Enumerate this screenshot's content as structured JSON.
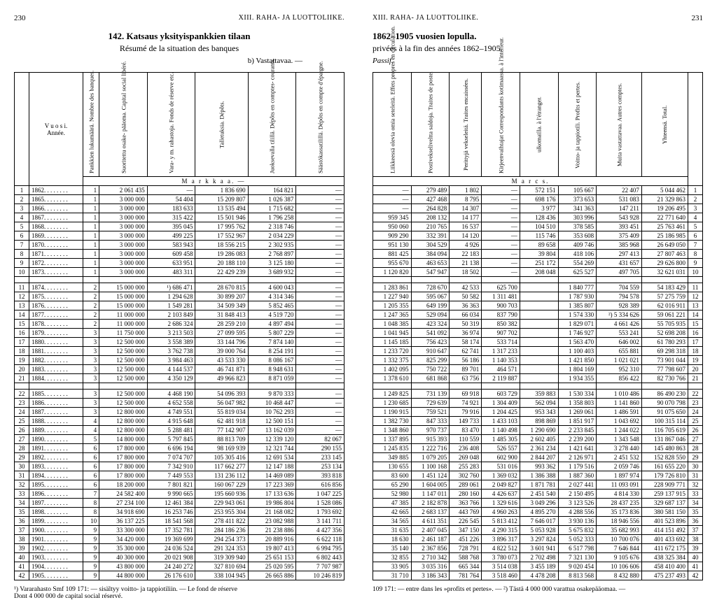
{
  "left": {
    "page_num": "230",
    "section": "XIII. RAHA- JA LUOTTOLIIKE.",
    "title_num": "142.",
    "title": "Katsaus yksityispankkien tilaan",
    "subtitle": "Résumé de la situation des banques",
    "note_b": "b) Vastattavaa. —",
    "year_header": "V u o s i.\nAnnée.",
    "columns": [
      "Pankkien lukumäärä.\nNombre des banques.",
      "Suoritettu osake-\npääoma.\nCapital social libéré.",
      "Vara- y m. rahastoja.\nFonds de réserve etc.",
      "Talletuksia.\nDépôts.",
      "Juoksevalla tilillä.\nDépôts en comptes-\ncourants.",
      "Säästökassatilillä.\nDépôts en compte\nd'épargne."
    ],
    "unit": "M a r k k a a. —",
    "rows": [
      [
        "1",
        "1862. . . . . . . .",
        "1",
        "2 061 435",
        "—",
        "1 836 690",
        "164 821",
        "—"
      ],
      [
        "2",
        "1865. . . . . . . .",
        "1",
        "3 000 000",
        "54 404",
        "15 209 807",
        "1 026 387",
        "—"
      ],
      [
        "3",
        "1866. . . . . . . .",
        "1",
        "3 000 000",
        "183 633",
        "13 535 494",
        "1 715 682",
        "—"
      ],
      [
        "4",
        "1867. . . . . . . .",
        "1",
        "3 000 000",
        "315 422",
        "15 501 946",
        "1 796 258",
        "—"
      ],
      [
        "5",
        "1868. . . . . . . .",
        "1",
        "3 000 000",
        "395 045",
        "17 995 762",
        "2 318 746",
        "—"
      ],
      [
        "6",
        "1869. . . . . . . .",
        "1",
        "3 000 000",
        "499 225",
        "17 552 967",
        "2 034 229",
        "—"
      ],
      [
        "7",
        "1870. . . . . . . .",
        "1",
        "3 000 000",
        "583 943",
        "18 556 215",
        "2 302 935",
        "—"
      ],
      [
        "8",
        "1871. . . . . . . .",
        "1",
        "3 000 000",
        "609 458",
        "19 286 083",
        "2 768 897",
        "—"
      ],
      [
        "9",
        "1872. . . . . . . .",
        "1",
        "3 000 000",
        "633 951",
        "20 188 110",
        "3 125 180",
        "—"
      ],
      [
        "10",
        "1873. . . . . . . .",
        "1",
        "3 000 000",
        "483 311",
        "22 429 239",
        "3 689 932",
        "—"
      ],
      [
        "11",
        "1874. . . . . . . .",
        "2",
        "15 000 000",
        "¹) 686 471",
        "28 670 815",
        "4 600 043",
        "—"
      ],
      [
        "12",
        "1875. . . . . . . .",
        "2",
        "15 000 000",
        "1 294 628",
        "30 899 207",
        "4 314 346",
        "—"
      ],
      [
        "13",
        "1876. . . . . . . .",
        "2",
        "15 000 000",
        "1 549 281",
        "34 509 349",
        "5 852 465",
        "—"
      ],
      [
        "14",
        "1877. . . . . . . .",
        "2",
        "11 000 000",
        "2 103 849",
        "31 848 413",
        "4 519 720",
        "—"
      ],
      [
        "15",
        "1878. . . . . . . .",
        "2",
        "11 000 000",
        "2 686 324",
        "28 259 210",
        "4 897 494",
        "—"
      ],
      [
        "16",
        "1879. . . . . . . .",
        "3",
        "11 750 000",
        "3 213 503",
        "27 099 595",
        "5 807 229",
        "—"
      ],
      [
        "17",
        "1880. . . . . . . .",
        "3",
        "12 500 000",
        "3 558 389",
        "33 144 796",
        "7 874 140",
        "—"
      ],
      [
        "18",
        "1881. . . . . . . .",
        "3",
        "12 500 000",
        "3 762 738",
        "39 000 764",
        "8 254 191",
        "—"
      ],
      [
        "19",
        "1882. . . . . . . .",
        "3",
        "12 500 000",
        "3 984 463",
        "43 533 330",
        "8 086 167",
        "—"
      ],
      [
        "20",
        "1883. . . . . . . .",
        "3",
        "12 500 000",
        "4 144 537",
        "46 741 871",
        "8 948 631",
        "—"
      ],
      [
        "21",
        "1884. . . . . . . .",
        "3",
        "12 500 000",
        "4 350 129",
        "49 966 823",
        "8 871 059",
        "—"
      ],
      [
        "22",
        "1885. . . . . . . .",
        "3",
        "12 500 000",
        "4 468 190",
        "54 096 393",
        "9 870 333",
        "—"
      ],
      [
        "23",
        "1886. . . . . . . .",
        "3",
        "12 500 000",
        "4 652 558",
        "56 047 982",
        "10 468 447",
        "—"
      ],
      [
        "24",
        "1887. . . . . . . .",
        "3",
        "12 800 000",
        "4 749 551",
        "55 819 034",
        "10 762 293",
        "—"
      ],
      [
        "25",
        "1888. . . . . . . .",
        "4",
        "12 800 000",
        "4 915 648",
        "62 481 918",
        "12 500 151",
        "—"
      ],
      [
        "26",
        "1889. . . . . . . .",
        "4",
        "12 800 000",
        "5 288 481",
        "77 142 907",
        "13 162 039",
        "—"
      ],
      [
        "27",
        "1890. . . . . . . .",
        "5",
        "14 800 000",
        "5 797 845",
        "88 813 709",
        "12 339 120",
        "82 067"
      ],
      [
        "28",
        "1891. . . . . . . .",
        "6",
        "17 800 000",
        "6 696 194",
        "98 169 939",
        "12 321 744",
        "290 155"
      ],
      [
        "29",
        "1892. . . . . . . .",
        "6",
        "17 800 000",
        "7 074 707",
        "105 305 416",
        "12 691 534",
        "233 145"
      ],
      [
        "30",
        "1893. . . . . . . .",
        "6",
        "17 800 000",
        "7 342 910",
        "117 662 277",
        "12 147 188",
        "253 134"
      ],
      [
        "31",
        "1894. . . . . . . .",
        "6",
        "17 800 000",
        "7 449 553",
        "131 236 112",
        "14 469 089",
        "393 818"
      ],
      [
        "32",
        "1895. . . . . . . .",
        "6",
        "18 200 000",
        "7 801 821",
        "160 067 229",
        "17 223 369",
        "616 856"
      ],
      [
        "33",
        "1896. . . . . . . .",
        "7",
        "24 582 400",
        "9 990 665",
        "195 660 936",
        "17 133 636",
        "1 047 225"
      ],
      [
        "34",
        "1897. . . . . . . .",
        "8",
        "27 234 100",
        "12 461 384",
        "229 943 061",
        "19 986 804",
        "1 528 086"
      ],
      [
        "35",
        "1898. . . . . . . .",
        "8",
        "34 918 690",
        "16 253 746",
        "253 955 304",
        "21 168 082",
        "1 793 692"
      ],
      [
        "36",
        "1899. . . . . . . .",
        "10",
        "36 137 225",
        "18 541 568",
        "278 411 822",
        "23 082 988",
        "3 141 711"
      ],
      [
        "37",
        "1900. . . . . . . .",
        "9",
        "33 300 000",
        "17 352 781",
        "284 186 236",
        "21 238 886",
        "4 427 356"
      ],
      [
        "38",
        "1901. . . . . . . .",
        "9",
        "34 420 000",
        "19 369 699",
        "294 254 373",
        "20 889 916",
        "6 622 118"
      ],
      [
        "39",
        "1902. . . . . . . .",
        "9",
        "35 300 000",
        "24 036 524",
        "291 324 353",
        "19 807 413",
        "6 994 795"
      ],
      [
        "40",
        "1903. . . . . . . .",
        "9",
        "40 300 000",
        "20 021 908",
        "319 309 940",
        "25 651 153",
        "6 802 443"
      ],
      [
        "41",
        "1904. . . . . . . .",
        "9",
        "43 800 000",
        "24 240 272",
        "327 810 694",
        "25 020 595",
        "7 707 987"
      ],
      [
        "42",
        "1905. . . . . . . .",
        "9",
        "44 800 000",
        "26 176 610",
        "338 104 945",
        "26 665 886",
        "10 246 819"
      ]
    ],
    "footnote": "¹) Vararahasto Smf 109 171: — sisältyy voitto- ja tappiotiliin. — Le fond de réserve\nDont 4 000 000 de capital social réservé."
  },
  "right": {
    "page_num": "231",
    "section": "XIII. RAHA- JA LUOTTOLIIKE.",
    "title": "1862–1905 vuosien lopulla.",
    "subtitle": "privées à la fin des années 1862–1905.",
    "note": "Passif.",
    "columns": [
      "Liikkeessä olevia\nomia seteleitä.\nEffets propres en\ncirculation.",
      "Postivekseliveltta\nsaldoja.\nTraites de poste.",
      "Perittyjä vekseleitä.\nTraites encaissées.",
      "Kirjeenvaihtajat\nCorrespondants\nkotimaassa.\nà l'intérieur.",
      "ulkomailla.\nà l'étranger.",
      "Voitto- ja tappiotili.\nProfits et pertes.",
      "Muita vastattavaa.\nAutres comptes.",
      "Yhteensä.\nTotal."
    ],
    "unit": "M a r c s.",
    "rows": [
      [
        "—",
        "279 489",
        "1 802",
        "—",
        "572 151",
        "105 667",
        "22 407",
        "5 044 462",
        "1"
      ],
      [
        "—",
        "427 468",
        "8 795",
        "—",
        "698 176",
        "373 653",
        "531 083",
        "21 329 863",
        "2"
      ],
      [
        "—",
        "264 828",
        "14 307",
        "—",
        "3 977",
        "341 363",
        "147 211",
        "19 206 495",
        "3"
      ],
      [
        "959 345",
        "208 132",
        "14 177",
        "—",
        "128 436",
        "303 996",
        "543 928",
        "22 771 640",
        "4"
      ],
      [
        "950 060",
        "210 765",
        "16 537",
        "—",
        "104 510",
        "378 585",
        "393 451",
        "25 763 461",
        "5"
      ],
      [
        "909 290",
        "332 391",
        "14 120",
        "—",
        "115 746",
        "353 608",
        "375 409",
        "25 186 985",
        "6"
      ],
      [
        "951 130",
        "304 529",
        "4 926",
        "—",
        "89 658",
        "409 746",
        "385 968",
        "26 649 050",
        "7"
      ],
      [
        "881 425",
        "384 094",
        "22 183",
        "—",
        "39 804",
        "418 106",
        "297 413",
        "27 807 463",
        "8"
      ],
      [
        "955 670",
        "463 653",
        "21 138",
        "—",
        "251 172",
        "554 269",
        "431 657",
        "29 626 800",
        "9"
      ],
      [
        "1 120 820",
        "547 947",
        "18 502",
        "—",
        "208 048",
        "625 527",
        "497 705",
        "32 621 031",
        "10"
      ],
      [
        "1 283 861",
        "728 670",
        "42 533",
        "625 700",
        "",
        "1 840 777",
        "704 559",
        "54 183 429",
        "11"
      ],
      [
        "1 227 940",
        "595 067",
        "50 582",
        "1 311 481",
        "",
        "1 787 930",
        "794 578",
        "57 275 759",
        "12"
      ],
      [
        "1 205 355",
        "649 199",
        "36 363",
        "900 703",
        "",
        "1 385 807",
        "928 389",
        "62 016 911",
        "13"
      ],
      [
        "1 247 365",
        "529 094",
        "66 034",
        "837 790",
        "",
        "1 574 330",
        "²) 5 334 626",
        "59 061 221",
        "14"
      ],
      [
        "1 048 385",
        "423 324",
        "50 319",
        "850 382",
        "",
        "1 829 071",
        "4 661 426",
        "55 705 935",
        "15"
      ],
      [
        "1 041 945",
        "541 092",
        "36 974",
        "907 702",
        "",
        "1 746 927",
        "553 241",
        "52 698 208",
        "16"
      ],
      [
        "1 145 185",
        "756 423",
        "58 174",
        "533 714",
        "",
        "1 563 470",
        "646 002",
        "61 780 293",
        "17"
      ],
      [
        "1 233 720",
        "910 647",
        "62 741",
        "1 317 233",
        "",
        "1 100 403",
        "655 881",
        "69 298 318",
        "18"
      ],
      [
        "1 332 375",
        "825 299",
        "56 186",
        "1 140 353",
        "",
        "1 421 850",
        "1 021 021",
        "73 901 044",
        "19"
      ],
      [
        "1 402 095",
        "750 722",
        "89 701",
        "464 571",
        "",
        "1 804 169",
        "952 310",
        "77 798 607",
        "20"
      ],
      [
        "1 378 610",
        "681 868",
        "63 756",
        "2 119 887",
        "",
        "1 934 355",
        "856 422",
        "82 730 766",
        "21"
      ],
      [
        "1 249 825",
        "731 139",
        "69 918",
        "603 729",
        "359 883",
        "1 530 334",
        "1 010 486",
        "86 490 230",
        "22"
      ],
      [
        "1 230 685",
        "729 639",
        "74 921",
        "1 304 409",
        "562 094",
        "1 358 803",
        "1 141 860",
        "90 070 798",
        "23"
      ],
      [
        "1 190 915",
        "759 521",
        "79 916",
        "1 204 425",
        "953 343",
        "1 269 061",
        "1 486 591",
        "91 075 650",
        "24"
      ],
      [
        "1 382 730",
        "847 333",
        "149 733",
        "1 433 103",
        "898 869",
        "1 851 917",
        "1 043 692",
        "100 315 114",
        "25"
      ],
      [
        "1 348 860",
        "970 737",
        "83 470",
        "1 140 498",
        "1 290 690",
        "2 233 845",
        "1 244 022",
        "116 705 619",
        "26"
      ],
      [
        "1 337 895",
        "915 393",
        "110 559",
        "1 485 305",
        "2 602 405",
        "2 239 200",
        "1 343 548",
        "131 867 046",
        "27"
      ],
      [
        "1 245 835",
        "1 222 716",
        "236 408",
        "526 557",
        "2 361 234",
        "1 421 641",
        "3 278 440",
        "145 480 863",
        "28"
      ],
      [
        "349 885",
        "1 079 205",
        "269 048",
        "602 900",
        "2 844 207",
        "2 126 971",
        "2 451 532",
        "152 828 550",
        "29"
      ],
      [
        "130 655",
        "1 100 168",
        "255 283",
        "531 016",
        "993 362",
        "1 179 516",
        "2 059 746",
        "161 655 220",
        "30"
      ],
      [
        "83 600",
        "1 451 124",
        "302 760",
        "1 369 032",
        "1 386 388",
        "1 887 360",
        "1 897 974",
        "179 726 810",
        "31"
      ],
      [
        "65 290",
        "1 604 005",
        "289 061",
        "2 049 827",
        "1 871 781",
        "2 027 441",
        "11 093 091",
        "228 909 771",
        "32"
      ],
      [
        "52 980",
        "1 147 011",
        "280 160",
        "4 426 637",
        "2 451 540",
        "2 150 495",
        "4 814 330",
        "259 137 915",
        "33"
      ],
      [
        "47 385",
        "2 182 878",
        "363 766",
        "1 329 616",
        "3 049 296",
        "3 123 526",
        "28 437 235",
        "329 687 137",
        "34"
      ],
      [
        "42 665",
        "2 683 137",
        "443 769",
        "4 960 263",
        "4 895 270",
        "4 288 556",
        "35 173 836",
        "380 581 150",
        "35"
      ],
      [
        "34 565",
        "4 611 351",
        "226 545",
        "5 813 412",
        "7 646 017",
        "3 930 136",
        "18 946 556",
        "401 523 896",
        "36"
      ],
      [
        "31 635",
        "2 407 045",
        "347 150",
        "4 290 315",
        "5 053 928",
        "5 675 832",
        "35 682 993",
        "414 151 492",
        "37"
      ],
      [
        "18 630",
        "2 461 187",
        "451 226",
        "3 896 317",
        "3 297 824",
        "5 052 333",
        "10 700 076",
        "401 433 692",
        "38"
      ],
      [
        "35 140",
        "2 367 856",
        "728 791",
        "4 822 512",
        "3 601 941",
        "6 517 798",
        "7 646 844",
        "411 672 175",
        "39"
      ],
      [
        "32 855",
        "2 710 342",
        "588 768",
        "3 780 073",
        "2 702 498",
        "7 321 130",
        "9 105 676",
        "438 325 384",
        "40"
      ],
      [
        "33 905",
        "3 035 316",
        "665 344",
        "3 514 038",
        "3 455 189",
        "9 020 454",
        "10 106 606",
        "458 410 400",
        "41"
      ],
      [
        "31 710",
        "3 186 343",
        "781 764",
        "3 518 460",
        "4 478 208",
        "8 813 568",
        "8 432 880",
        "475 237 493",
        "42"
      ]
    ],
    "footnote": "109 171: — entre dans les »profits et pertes». — ²) Tästä 4 000 000 varattua osakepääomaa. —"
  }
}
